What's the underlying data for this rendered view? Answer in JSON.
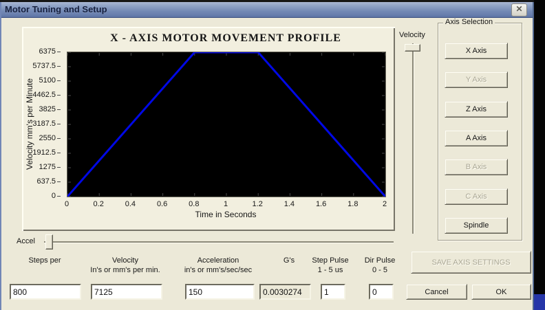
{
  "window": {
    "title": "Motor Tuning and Setup",
    "close_glyph": "✕"
  },
  "chart_data": {
    "type": "line",
    "title": "X - AXIS MOTOR MOVEMENT PROFILE",
    "xlabel": "Time in Seconds",
    "ylabel": "Velocity mm's per Minute",
    "x": [
      0,
      0.8,
      1.2,
      2
    ],
    "y": [
      0,
      6375,
      6375,
      0
    ],
    "xlim": [
      0,
      2
    ],
    "ylim": [
      0,
      6375
    ],
    "x_tick_labels": [
      "0",
      "0.2",
      "0.4",
      "0.6",
      "0.8",
      "1",
      "1.2",
      "1.4",
      "1.6",
      "1.8",
      "2"
    ],
    "y_tick_labels_top_to_bottom": [
      "6375",
      "5737.5",
      "5100",
      "4462.5",
      "3825",
      "3187.5",
      "2550",
      "1912.5",
      "1275",
      "637.5",
      "0"
    ],
    "line_color": "#0008e6",
    "plot_bg": "#000000",
    "tick_color": "#4c4c4c",
    "grid": false,
    "legend": null,
    "description": "Trapezoidal motor velocity profile: accelerates 0 to 6375 mm/min between t=0 and t=0.8s, holds peak to t=1.2s, decelerates to 0 at t=2s"
  },
  "sliders": {
    "velocity_label": "Velocity",
    "accel_label": "Accel"
  },
  "axis_selection": {
    "group_label": "Axis Selection",
    "buttons": [
      {
        "label": "X Axis",
        "enabled": true
      },
      {
        "label": "Y Axis",
        "enabled": false
      },
      {
        "label": "Z Axis",
        "enabled": true
      },
      {
        "label": "A Axis",
        "enabled": true
      },
      {
        "label": "B Axis",
        "enabled": false
      },
      {
        "label": "C Axis",
        "enabled": false
      },
      {
        "label": "Spindle",
        "enabled": true
      }
    ]
  },
  "form": {
    "fields": [
      {
        "label1": "",
        "label2": "Steps per",
        "value": "800",
        "readonly": false
      },
      {
        "label1": "Velocity",
        "label2": "In's or mm's per min.",
        "value": "7125",
        "readonly": false
      },
      {
        "label1": "Acceleration",
        "label2": "in's or mm's/sec/sec",
        "value": "150",
        "readonly": false
      },
      {
        "label1": "",
        "label2": "G's",
        "value": "0.0030274",
        "readonly": true
      },
      {
        "label1": "Step Pulse",
        "label2": "1 - 5 us",
        "value": "1",
        "readonly": false
      },
      {
        "label1": "Dir Pulse",
        "label2": "0 - 5",
        "value": "0",
        "readonly": false
      }
    ]
  },
  "buttons": {
    "save": "SAVE AXIS SETTINGS",
    "cancel": "Cancel",
    "ok": "OK"
  }
}
